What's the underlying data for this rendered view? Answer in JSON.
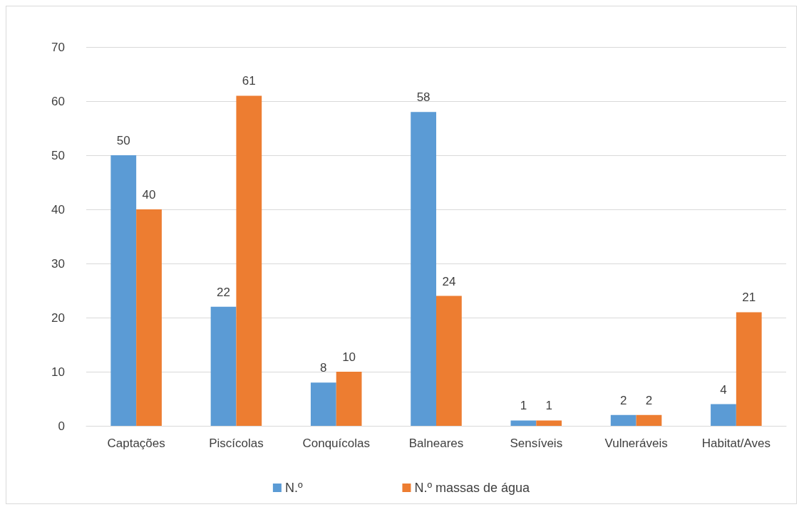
{
  "chart_data": {
    "type": "bar",
    "categories": [
      "Captações",
      "Piscícolas",
      "Conquícolas",
      "Balneares",
      "Sensíveis",
      "Vulneráveis",
      "Habitat/Aves"
    ],
    "series": [
      {
        "name": "N.º",
        "color": "#5b9bd5",
        "values": [
          50,
          22,
          8,
          58,
          1,
          2,
          4
        ]
      },
      {
        "name": "N.º massas de água",
        "color": "#ed7d31",
        "values": [
          40,
          61,
          10,
          24,
          1,
          2,
          21
        ]
      }
    ],
    "ylim": [
      0,
      70
    ],
    "yticks": [
      0,
      10,
      20,
      30,
      40,
      50,
      60,
      70
    ],
    "grid": "y",
    "legend": "bottom",
    "data_labels": true
  }
}
